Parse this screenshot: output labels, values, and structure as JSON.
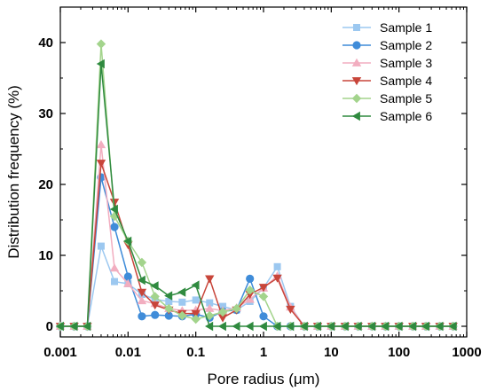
{
  "chart_data": {
    "type": "line",
    "x_scale": "log",
    "xlabel": "Pore radius (μm)",
    "ylabel": "Distribution frequency (%)",
    "xlim": [
      0.001,
      1000
    ],
    "ylim": [
      -1.5,
      45
    ],
    "x_ticks": [
      "0.001",
      "0.01",
      "0.1",
      "1",
      "10",
      "100",
      "1000"
    ],
    "y_ticks": [
      0,
      10,
      20,
      30,
      40
    ],
    "grid": false,
    "legend_position": "top-right",
    "x": [
      0.001,
      0.0016,
      0.0025,
      0.004,
      0.0063,
      0.01,
      0.016,
      0.025,
      0.04,
      0.063,
      0.1,
      0.16,
      0.25,
      0.4,
      0.63,
      1.0,
      1.6,
      2.5,
      4,
      6.3,
      10,
      16,
      25,
      40,
      63,
      100,
      160,
      250,
      400,
      630
    ],
    "series": [
      {
        "name": "Sample 1",
        "color": "#9cc8f0",
        "marker": "square",
        "values": [
          0,
          0,
          0,
          11.3,
          6.3,
          6.0,
          4.5,
          3.8,
          3.5,
          3.4,
          3.7,
          3.3,
          2.8,
          2.3,
          3.5,
          5.4,
          8.4,
          2.8,
          0,
          0,
          0,
          0,
          0,
          0,
          0,
          0,
          0,
          0,
          0,
          0
        ]
      },
      {
        "name": "Sample 2",
        "color": "#3f8cd9",
        "marker": "circle",
        "values": [
          0,
          0,
          0,
          21,
          14,
          7,
          1.4,
          1.6,
          1.5,
          1.4,
          1.7,
          1.2,
          2.1,
          2.3,
          6.7,
          1.4,
          0,
          0,
          0,
          0,
          0,
          0,
          0,
          0,
          0,
          0,
          0,
          0,
          0,
          0
        ]
      },
      {
        "name": "Sample 3",
        "color": "#f2aec0",
        "marker": "triangle-up",
        "values": [
          0,
          0,
          0,
          25.6,
          8.2,
          6.0,
          3.6,
          3.2,
          2.5,
          2.2,
          2.3,
          2.5,
          2.2,
          2.6,
          3.8,
          5.4,
          7.1,
          2.7,
          0,
          0,
          0,
          0,
          0,
          0,
          0,
          0,
          0,
          0,
          0,
          0
        ]
      },
      {
        "name": "Sample 4",
        "color": "#c8453a",
        "marker": "triangle-down",
        "values": [
          0,
          0,
          0,
          23,
          17.5,
          11.5,
          4.8,
          3.0,
          2.3,
          1.8,
          1.8,
          6.7,
          1.2,
          2.3,
          4.5,
          5.5,
          6.8,
          2.4,
          0,
          0,
          0,
          0,
          0,
          0,
          0,
          0,
          0,
          0,
          0,
          0
        ]
      },
      {
        "name": "Sample 5",
        "color": "#a3d48c",
        "marker": "diamond",
        "values": [
          0,
          0,
          0,
          39.8,
          15.5,
          12,
          9,
          4.2,
          2.5,
          1.5,
          1.0,
          1.5,
          2.0,
          2.5,
          5.1,
          4.2,
          0,
          0,
          0,
          0,
          0,
          0,
          0,
          0,
          0,
          0,
          0,
          0,
          0,
          0
        ]
      },
      {
        "name": "Sample 6",
        "color": "#2f8a3f",
        "marker": "triangle-left",
        "values": [
          0,
          0,
          0,
          37,
          16.5,
          12,
          6.5,
          5.7,
          4.3,
          4.8,
          5.8,
          0,
          0,
          0,
          0,
          0,
          0,
          0,
          0,
          0,
          0,
          0,
          0,
          0,
          0,
          0,
          0,
          0,
          0,
          0
        ]
      }
    ]
  }
}
